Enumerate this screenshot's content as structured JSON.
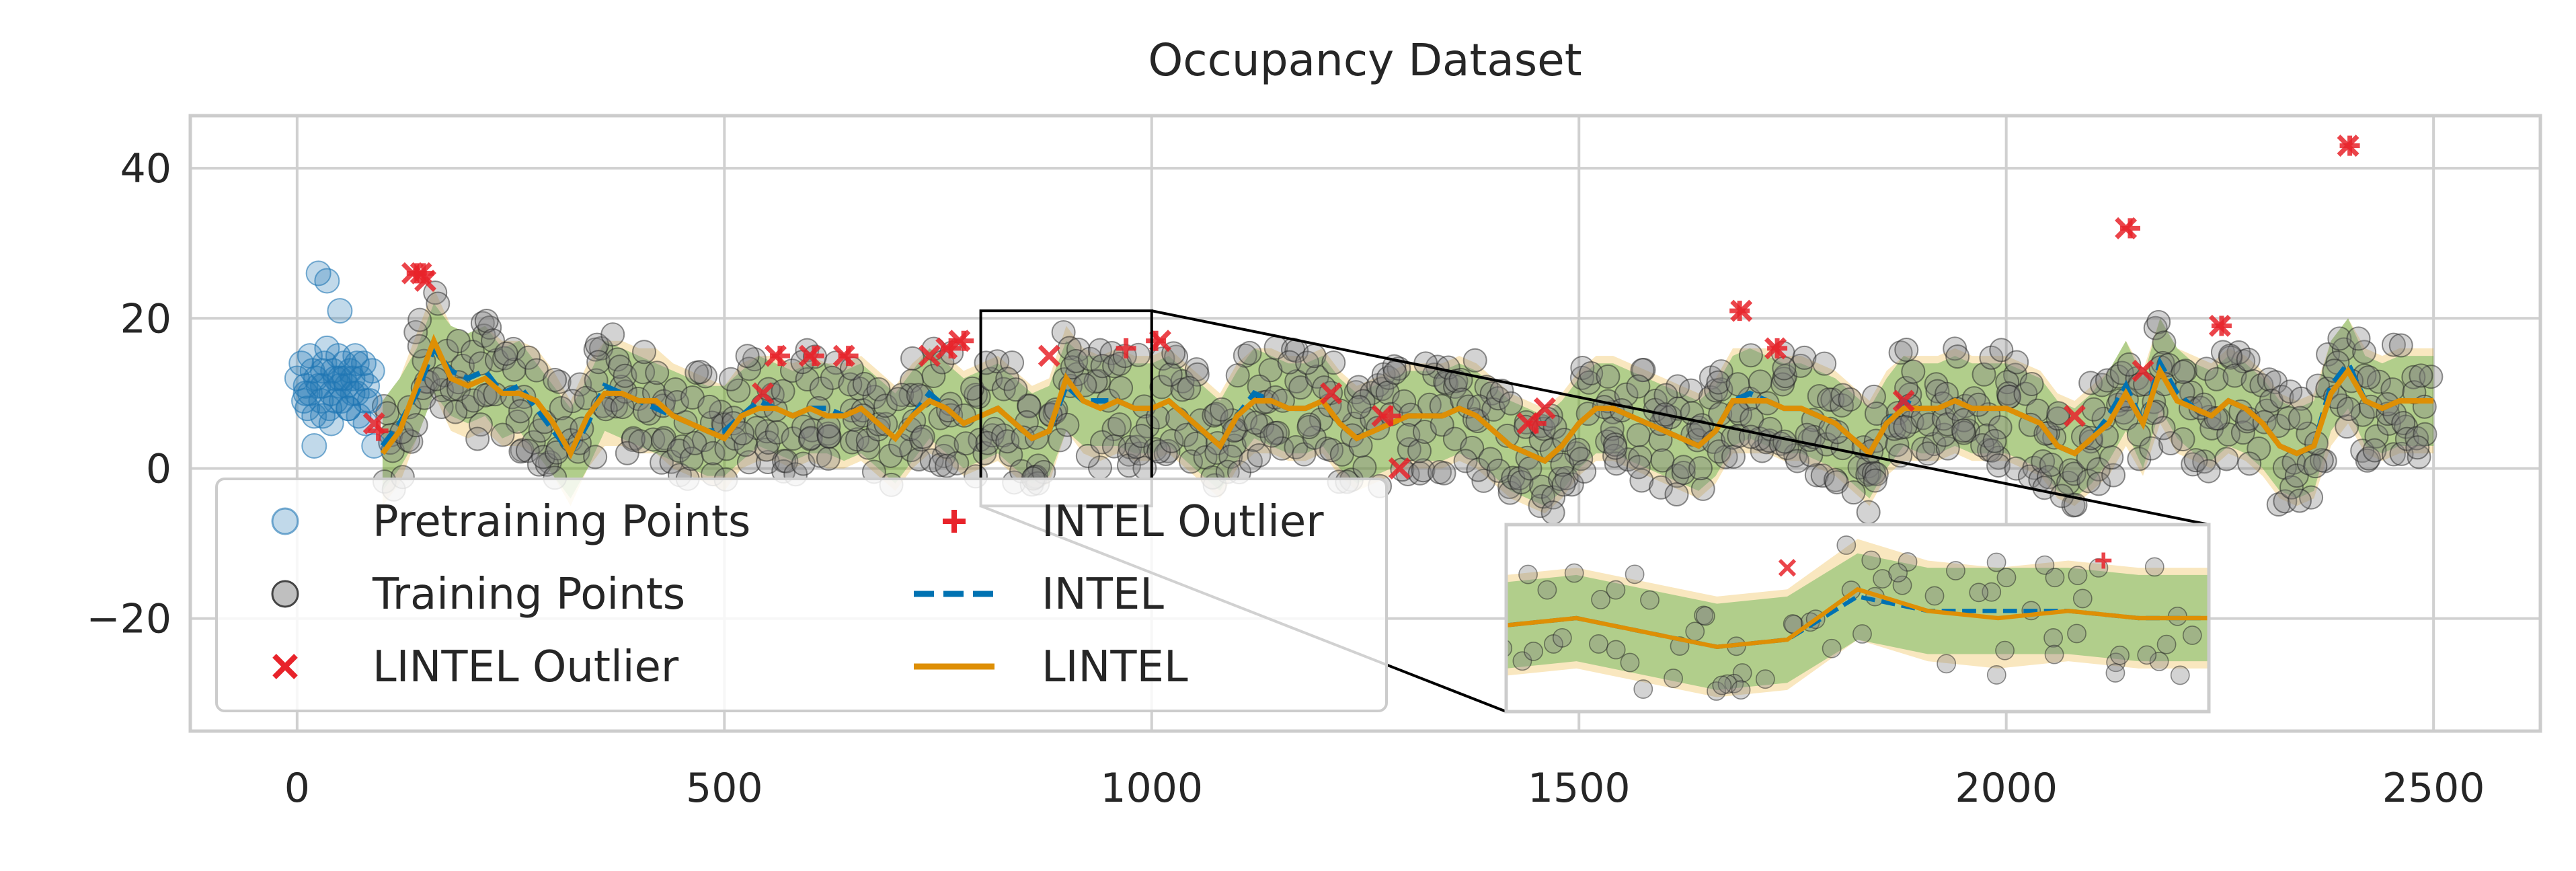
{
  "chart_data": {
    "type": "line",
    "title": "Occupancy Dataset",
    "xlabel": "",
    "ylabel": "",
    "xlim": [
      -125,
      2625
    ],
    "ylim": [
      -35,
      47
    ],
    "xticks": [
      "0",
      "500",
      "1000",
      "1500",
      "2000",
      "2500"
    ],
    "xtick_values": [
      0,
      500,
      1000,
      1500,
      2000,
      2500
    ],
    "yticks": [
      "−20",
      "0",
      "20",
      "40"
    ],
    "ytick_values": [
      -20,
      0,
      20,
      40
    ],
    "grid": true,
    "legend_placement": "lower-left",
    "legend": [
      {
        "label": "Pretraining Points",
        "marker": "circle-light-blue"
      },
      {
        "label": "Training Points",
        "marker": "circle-gray"
      },
      {
        "label": "LINTEL Outlier",
        "marker": "x-red"
      },
      {
        "label": "INTEL Outlier",
        "marker": "plus-red"
      },
      {
        "label": "INTEL",
        "marker": "dashed-blue"
      },
      {
        "label": "LINTEL",
        "marker": "solid-orange"
      }
    ],
    "series": [
      {
        "name": "LINTEL",
        "x": [
          100,
          120,
          140,
          160,
          180,
          200,
          220,
          240,
          260,
          280,
          300,
          320,
          340,
          360,
          380,
          400,
          420,
          440,
          460,
          480,
          500,
          520,
          540,
          560,
          580,
          600,
          620,
          640,
          660,
          680,
          700,
          720,
          740,
          760,
          780,
          800,
          820,
          840,
          860,
          880,
          900,
          920,
          940,
          960,
          980,
          1000,
          1020,
          1040,
          1060,
          1080,
          1100,
          1120,
          1140,
          1160,
          1180,
          1200,
          1220,
          1240,
          1260,
          1280,
          1300,
          1320,
          1340,
          1360,
          1380,
          1400,
          1420,
          1440,
          1460,
          1480,
          1500,
          1520,
          1540,
          1560,
          1580,
          1600,
          1620,
          1640,
          1660,
          1680,
          1700,
          1720,
          1740,
          1760,
          1780,
          1800,
          1820,
          1840,
          1860,
          1880,
          1900,
          1920,
          1940,
          1960,
          1980,
          2000,
          2020,
          2040,
          2060,
          2080,
          2100,
          2120,
          2140,
          2160,
          2180,
          2200,
          2220,
          2240,
          2260,
          2280,
          2300,
          2320,
          2340,
          2360,
          2380,
          2400,
          2420,
          2440,
          2460,
          2480,
          2500
        ],
        "values": [
          2,
          5,
          11,
          17,
          12,
          11,
          12,
          10,
          10,
          9,
          6,
          2,
          7,
          10,
          10,
          9,
          9,
          7,
          6,
          5,
          4,
          7,
          8,
          8,
          7,
          8,
          7,
          7,
          8,
          6,
          4,
          7,
          9,
          8,
          6,
          7,
          8,
          6,
          4,
          5,
          12,
          9,
          8,
          9,
          8,
          8,
          9,
          7,
          5,
          3,
          7,
          9,
          9,
          8,
          8,
          9,
          6,
          4,
          5,
          6,
          7,
          7,
          7,
          8,
          7,
          5,
          3,
          2,
          1,
          3,
          6,
          8,
          8,
          7,
          6,
          5,
          4,
          3,
          5,
          9,
          9,
          9,
          8,
          8,
          7,
          6,
          4,
          2,
          6,
          8,
          8,
          8,
          9,
          8,
          8,
          8,
          7,
          6,
          3,
          2,
          4,
          6,
          10,
          6,
          13,
          9,
          8,
          7,
          9,
          8,
          6,
          3,
          2,
          3,
          10,
          13,
          9,
          8,
          9,
          9,
          9
        ]
      },
      {
        "name": "INTEL",
        "x": [
          100,
          120,
          140,
          160,
          180,
          200,
          220,
          240,
          260,
          280,
          300,
          320,
          340,
          360,
          380,
          400,
          420,
          440,
          460,
          480,
          500,
          520,
          540,
          560,
          580,
          600,
          620,
          640,
          660,
          680,
          700,
          720,
          740,
          760,
          780,
          800,
          820,
          840,
          860,
          880,
          900,
          920,
          940,
          960,
          980,
          1000,
          1020,
          1040,
          1060,
          1080,
          1100,
          1120,
          1140,
          1160,
          1180,
          1200,
          1220,
          1240,
          1260,
          1280,
          1300,
          1320,
          1340,
          1360,
          1380,
          1400,
          1420,
          1440,
          1460,
          1480,
          1500,
          1520,
          1540,
          1560,
          1580,
          1600,
          1620,
          1640,
          1660,
          1680,
          1700,
          1720,
          1740,
          1760,
          1780,
          1800,
          1820,
          1840,
          1860,
          1880,
          1900,
          1920,
          1940,
          1960,
          1980,
          2000,
          2020,
          2040,
          2060,
          2080,
          2100,
          2120,
          2140,
          2160,
          2180,
          2200,
          2220,
          2240,
          2260,
          2280,
          2300,
          2320,
          2340,
          2360,
          2380,
          2400,
          2420,
          2440,
          2460,
          2480,
          2500
        ],
        "values": [
          3,
          6,
          10,
          16,
          13,
          12,
          13,
          10,
          11,
          8,
          5,
          2,
          6,
          11,
          10,
          9,
          8,
          7,
          6,
          5,
          5,
          7,
          9,
          8,
          7,
          8,
          8,
          7,
          8,
          6,
          4,
          7,
          10,
          8,
          6,
          7,
          8,
          6,
          4,
          5,
          11,
          9,
          9,
          9,
          8,
          8,
          9,
          7,
          5,
          3,
          7,
          10,
          9,
          8,
          8,
          9,
          6,
          4,
          5,
          6,
          7,
          7,
          7,
          8,
          7,
          5,
          3,
          2,
          1,
          3,
          6,
          8,
          8,
          7,
          6,
          5,
          4,
          3,
          5,
          9,
          10,
          9,
          8,
          8,
          7,
          6,
          4,
          2,
          6,
          9,
          8,
          8,
          9,
          8,
          8,
          8,
          7,
          6,
          3,
          2,
          4,
          7,
          11,
          6,
          14,
          10,
          8,
          7,
          9,
          8,
          6,
          3,
          2,
          3,
          11,
          14,
          9,
          8,
          9,
          9,
          9
        ]
      },
      {
        "name": "Pretraining Points",
        "x": [
          0,
          5,
          8,
          10,
          12,
          15,
          18,
          20,
          22,
          25,
          28,
          30,
          32,
          35,
          38,
          40,
          42,
          45,
          48,
          50,
          52,
          55,
          58,
          60,
          62,
          65,
          68,
          70,
          72,
          75,
          78,
          80,
          82,
          85,
          88,
          90,
          15,
          25,
          35,
          45,
          55,
          65,
          20,
          30,
          40,
          50,
          60,
          70,
          80,
          10,
          30,
          50
        ],
        "values": [
          12,
          14,
          9,
          11,
          8,
          10,
          13,
          7,
          12,
          26,
          9,
          11,
          14,
          25,
          8,
          10,
          13,
          12,
          15,
          21,
          9,
          14,
          11,
          8,
          13,
          12,
          15,
          10,
          7,
          12,
          14,
          6,
          11,
          9,
          13,
          3,
          15,
          11,
          16,
          9,
          12,
          10,
          3,
          7,
          6,
          12,
          8,
          14,
          9,
          10,
          13,
          11
        ]
      },
      {
        "name": "LINTEL Outlier",
        "x": [
          90,
          135,
          145,
          150,
          545,
          560,
          600,
          640,
          740,
          760,
          775,
          880,
          1010,
          1210,
          1270,
          1290,
          1440,
          1460,
          1690,
          1730,
          1880,
          2080,
          2140,
          2160,
          2250,
          2400
        ],
        "values": [
          6,
          26,
          26,
          25,
          10,
          15,
          15,
          15,
          15,
          16,
          17,
          15,
          17,
          10,
          7,
          0,
          6,
          8,
          21,
          16,
          9,
          7,
          32,
          13,
          19,
          43
        ]
      },
      {
        "name": "INTEL Outlier",
        "x": [
          95,
          140,
          148,
          565,
          605,
          645,
          765,
          780,
          970,
          1005,
          1280,
          1450,
          1688,
          1732,
          2145,
          2252,
          2402
        ],
        "values": [
          5,
          26,
          26,
          15,
          15,
          15,
          16,
          17,
          16,
          17,
          7,
          6,
          21,
          16,
          32,
          19,
          43
        ]
      }
    ],
    "inset": {
      "source_xlim": [
        800,
        1000
      ],
      "source_ylim": [
        -5,
        21
      ]
    }
  }
}
